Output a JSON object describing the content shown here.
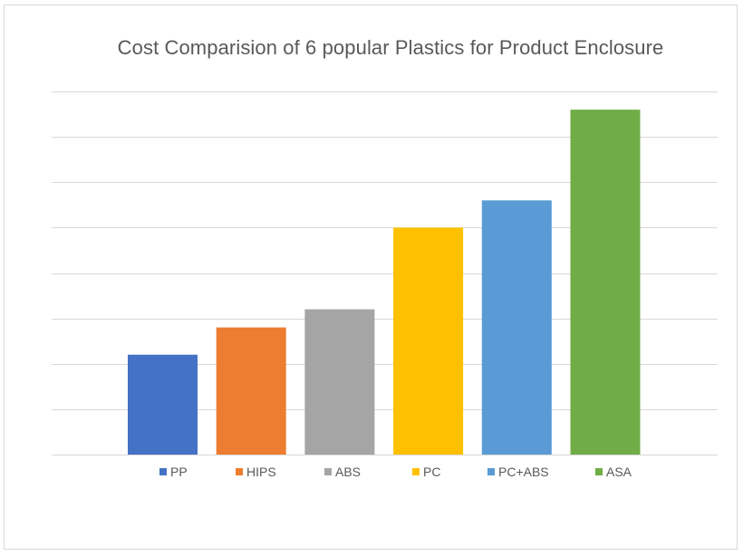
{
  "chart_data": {
    "type": "bar",
    "title": "Cost Comparision of 6 popular Plastics for Product Enclosure",
    "categories": [
      "PP",
      "HIPS",
      "ABS",
      "PC",
      "PC+ABS",
      "ASA"
    ],
    "values": [
      1.1,
      1.4,
      1.6,
      2.5,
      2.8,
      3.8
    ],
    "colors": [
      "#4472c4",
      "#ed7d31",
      "#a5a5a5",
      "#ffc000",
      "#5b9bd5",
      "#70ad47"
    ],
    "ylim": [
      0,
      4
    ],
    "gridlines": true,
    "axis_labels_visible": false,
    "legend_position": "bottom"
  }
}
